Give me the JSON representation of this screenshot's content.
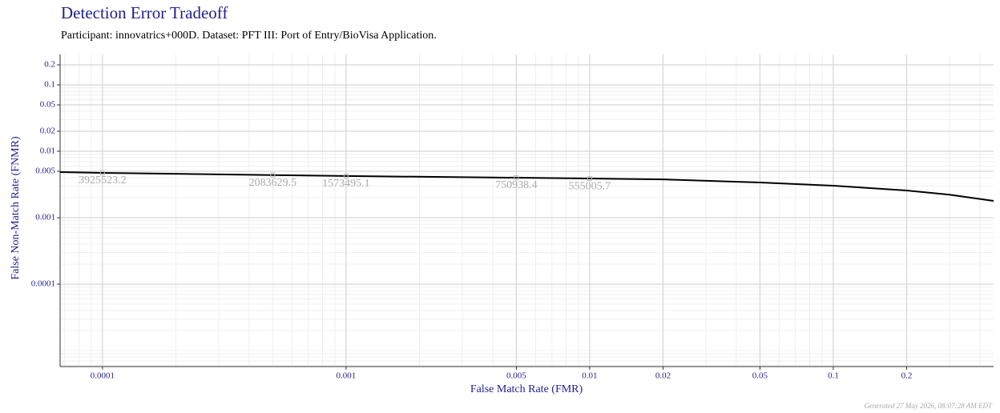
{
  "chart_data": {
    "type": "line",
    "title": "Detection Error Tradeoff",
    "subtitle": "Participant: innovatrics+000D. Dataset: PFT III: Port of Entry/BioVisa Application.",
    "x_label": "False Match Rate (FMR)",
    "y_label": "False Non-Match Rate (FNMR)",
    "footer": "Generated 27 May 2026, 08:07:28 AM EDT",
    "log_x": true,
    "log_y": true,
    "grid": true,
    "color": "#000000",
    "x": [
      6.7e-05,
      0.0001,
      0.0005,
      0.001,
      0.005,
      0.01,
      0.02,
      0.05,
      0.1,
      0.2,
      0.3,
      0.455
    ],
    "values": [
      0.00486,
      0.00473,
      0.00438,
      0.00424,
      0.004,
      0.00389,
      0.00378,
      0.00339,
      0.00303,
      0.00257,
      0.00222,
      0.00179
    ],
    "thresholds": [
      {
        "fmr": 0.0001,
        "fnmr": 0.00473,
        "threshold": 3925523.2
      },
      {
        "fmr": 0.0005,
        "fnmr": 0.00438,
        "threshold": 2083629.5
      },
      {
        "fmr": 0.001,
        "fnmr": 0.00424,
        "threshold": 1573495.1
      },
      {
        "fmr": 0.005,
        "fnmr": 0.004,
        "threshold": 750938.4
      },
      {
        "fmr": 0.01,
        "fnmr": 0.00389,
        "threshold": 555005.7
      }
    ],
    "xlim": [
      6.7e-05,
      0.455
    ],
    "ylim": [
      5.74e-06,
      0.287
    ],
    "xticks": [
      0.0001,
      0.001,
      0.005,
      0.01,
      0.02,
      0.05,
      0.1,
      0.2
    ],
    "yticks": [
      0.2,
      0.1,
      0.05,
      0.02,
      0.01,
      0.005,
      0.001,
      0.0001
    ]
  }
}
